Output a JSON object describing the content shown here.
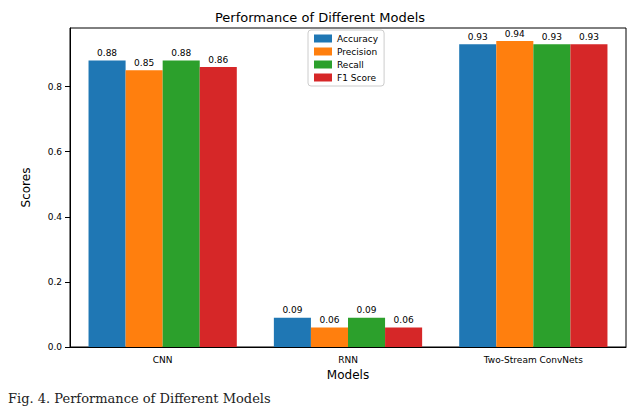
{
  "chart_data": {
    "type": "bar",
    "title": "Performance of Different Models",
    "x_label": "Models",
    "y_label": "Scores",
    "caption": "Fig. 4. Performance of Different Models",
    "categories": [
      "CNN",
      "RNN",
      "Two-Stream ConvNets"
    ],
    "series": [
      {
        "name": "Accuracy",
        "color": "#1f77b4",
        "values": [
          0.88,
          0.09,
          0.93
        ]
      },
      {
        "name": "Precision",
        "color": "#ff7f0e",
        "values": [
          0.85,
          0.06,
          0.94
        ]
      },
      {
        "name": "Recall",
        "color": "#2ca02c",
        "values": [
          0.88,
          0.09,
          0.93
        ]
      },
      {
        "name": "F1 Score",
        "color": "#d62728",
        "values": [
          0.86,
          0.06,
          0.93
        ]
      }
    ],
    "ylim": [
      0,
      0.98
    ],
    "yticks": [
      {
        "value": 0,
        "label": "0.0"
      },
      0.2,
      0.4,
      0.6,
      0.8
    ],
    "grid": false,
    "legend": "top",
    "data_labels": true
  }
}
